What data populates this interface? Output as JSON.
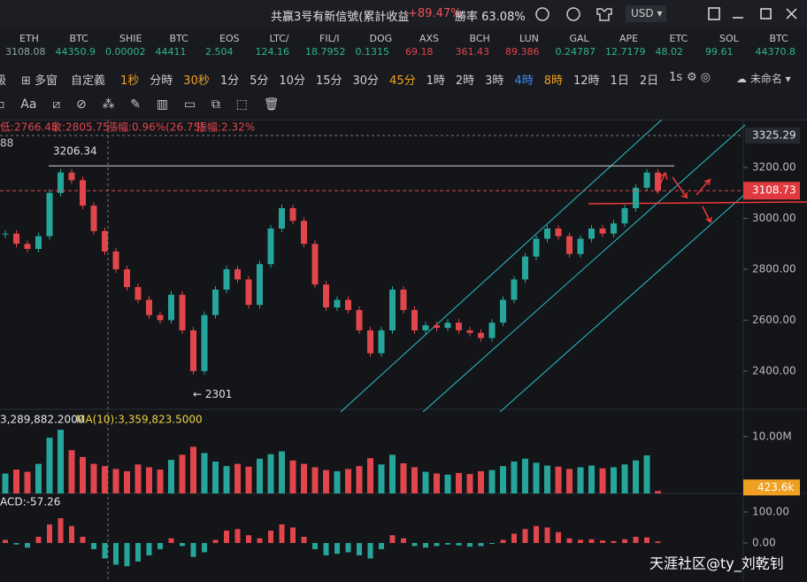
{
  "header": {
    "signal": "共赢3号有新信號(累計收益",
    "profit": "+89.47%",
    "winrate": "勝率 63.08%",
    "currency": "USD"
  },
  "tickers": [
    {
      "name": "ETH",
      "price": "3108.08",
      "color": "#8fa39b"
    },
    {
      "name": "BTC",
      "price": "44350.9",
      "color": "#2fb38a"
    },
    {
      "name": "SHIE",
      "price": "0.00002",
      "color": "#2fb38a"
    },
    {
      "name": "BTC",
      "price": "44411",
      "color": "#2fb38a"
    },
    {
      "name": "EOS",
      "price": "2.504",
      "color": "#2fb38a"
    },
    {
      "name": "LTC/",
      "price": "124.16",
      "color": "#2fb38a"
    },
    {
      "name": "FIL/I",
      "price": "18.7952",
      "color": "#2fb38a"
    },
    {
      "name": "DOG",
      "price": "0.1315",
      "color": "#2fb38a"
    },
    {
      "name": "AXS",
      "price": "69.18",
      "color": "#e0464c"
    },
    {
      "name": "BCH",
      "price": "361.43",
      "color": "#e0464c"
    },
    {
      "name": "LUN",
      "price": "89.386",
      "color": "#e0464c"
    },
    {
      "name": "GAL",
      "price": "0.24787",
      "color": "#2fb38a"
    },
    {
      "name": "APE",
      "price": "12.7179",
      "color": "#2fb38a"
    },
    {
      "name": "ETC",
      "price": "48.02",
      "color": "#2fb38a"
    },
    {
      "name": "SOL",
      "price": "99.61",
      "color": "#2fb38a"
    },
    {
      "name": "BTC",
      "price": "44370.8",
      "color": "#2fb38a"
    }
  ],
  "toolbar": {
    "left": "級",
    "layout": "多窗",
    "custom": "自定義",
    "preset": "未命名"
  },
  "intervals": [
    {
      "label": "1秒",
      "color": "#f0a020"
    },
    {
      "label": "分時",
      "color": "#d0d0d0"
    },
    {
      "label": "30秒",
      "color": "#f0a020"
    },
    {
      "label": "1分",
      "color": "#d0d0d0"
    },
    {
      "label": "5分",
      "color": "#d0d0d0"
    },
    {
      "label": "10分",
      "color": "#d0d0d0"
    },
    {
      "label": "15分",
      "color": "#d0d0d0"
    },
    {
      "label": "30分",
      "color": "#d0d0d0"
    },
    {
      "label": "45分",
      "color": "#f0a020"
    },
    {
      "label": "1時",
      "color": "#d0d0d0"
    },
    {
      "label": "2時",
      "color": "#d0d0d0"
    },
    {
      "label": "3時",
      "color": "#d0d0d0"
    },
    {
      "label": "4時",
      "color": "#3b8cf0"
    },
    {
      "label": "8時",
      "color": "#f0a020"
    },
    {
      "label": "12時",
      "color": "#d0d0d0"
    },
    {
      "label": "1日",
      "color": "#d0d0d0"
    },
    {
      "label": "2日",
      "color": "#d0d0d0"
    },
    {
      "label": "1s",
      "color": "#d0d0d0"
    }
  ],
  "info": {
    "low": "低:2766.45",
    "close": "收:2805.75",
    "change": "漲幅:0.96%(26.75)",
    "amplitude": "振幅:2.32%",
    "extra": "88"
  },
  "watermark": "天涯社区@ty_刘乾钊",
  "chart_data": {
    "type": "candlestick",
    "closes": [
      2940,
      2900,
      2880,
      2930,
      3100,
      3180,
      3150,
      3050,
      2950,
      2870,
      2800,
      2730,
      2680,
      2620,
      2600,
      2700,
      2560,
      2400,
      2620,
      2720,
      2800,
      2760,
      2660,
      2820,
      2960,
      3040,
      2990,
      2900,
      2740,
      2650,
      2680,
      2640,
      2560,
      2470,
      2560,
      2720,
      2640,
      2560,
      2580,
      2570,
      2590,
      2560,
      2550,
      2530,
      2590,
      2680,
      2760,
      2850,
      2920,
      2960,
      2930,
      2860,
      2920,
      2960,
      2940,
      2980,
      3040,
      3120,
      3180,
      3108.73
    ],
    "ylim": [
      2250,
      3388
    ],
    "yticks": [
      {
        "value": 2400,
        "label": "2400.00"
      },
      {
        "value": 2600,
        "label": "2600.00"
      },
      {
        "value": 2800,
        "label": "2800.00"
      },
      {
        "value": 3000,
        "label": "3000.00"
      },
      {
        "value": 3200,
        "label": "3200.00"
      }
    ],
    "last_price": {
      "value": 3108.73,
      "label": "3108.73"
    },
    "crosshair_price": {
      "value": 3325.29,
      "label": "3325.29"
    },
    "high_label": "3206.34",
    "high_value": 3206.34,
    "low_label": "← 2301",
    "low_value": 2301,
    "volume": {
      "label": "3,289,882.2000",
      "ma_label": "MA(10):3,359,823.5000",
      "ylim": [
        0,
        14800000
      ],
      "yticks": [
        {
          "value": 10000000,
          "label": "10.00M"
        }
      ],
      "values": [
        3500000,
        4200000,
        3800000,
        5200000,
        9800000,
        11200000,
        7600000,
        6400000,
        5200000,
        4800000,
        4300000,
        3900000,
        5100000,
        4600000,
        4200000,
        5900000,
        6800000,
        8200000,
        7100000,
        5600000,
        4800000,
        5200000,
        4700000,
        6100000,
        6900000,
        7400000,
        5800000,
        5200000,
        4600000,
        4100000,
        3900000,
        4300000,
        4800000,
        6200000,
        5100000,
        6800000,
        5300000,
        4600000,
        3800000,
        3500000,
        3300000,
        3600000,
        3400000,
        3900000,
        4100000,
        4800000,
        5600000,
        6100000,
        5400000,
        4900000,
        4700000,
        4300000,
        4600000,
        4900000,
        4400000,
        4600000,
        5100000,
        5800000,
        6700000,
        423600
      ],
      "last": {
        "value": 423600,
        "label": "423.6k"
      }
    },
    "macd": {
      "label": "ACD:-57.26",
      "ylim": [
        -126,
        160
      ],
      "yticks": [
        {
          "value": 0,
          "label": "0.00"
        },
        {
          "value": 100,
          "label": "100.00"
        }
      ],
      "values": [
        10,
        -5,
        -15,
        20,
        60,
        80,
        55,
        20,
        -20,
        -50,
        -70,
        -75,
        -60,
        -40,
        -20,
        15,
        -10,
        -45,
        -30,
        10,
        40,
        45,
        25,
        15,
        40,
        60,
        50,
        20,
        -20,
        -40,
        -35,
        -30,
        -40,
        -50,
        -20,
        25,
        15,
        -10,
        -15,
        -10,
        -5,
        -8,
        -12,
        -10,
        -3,
        10,
        30,
        45,
        55,
        50,
        35,
        15,
        10,
        12,
        8,
        6,
        12,
        20,
        18,
        5
      ]
    }
  }
}
